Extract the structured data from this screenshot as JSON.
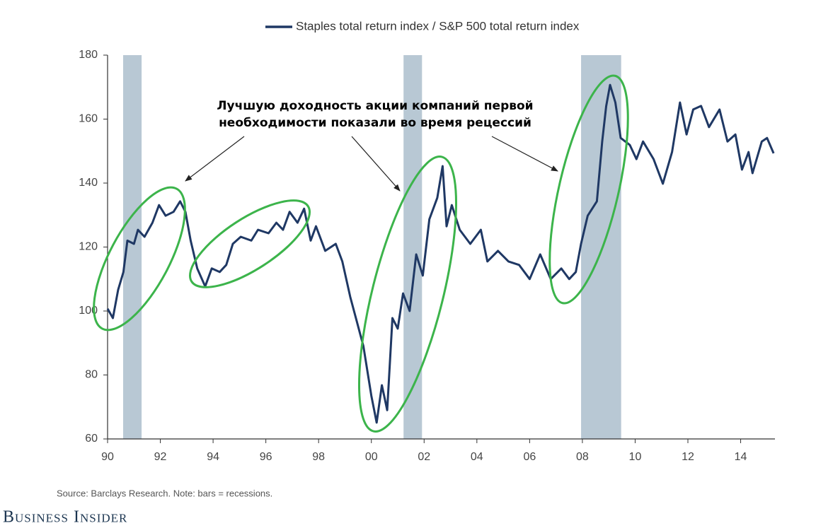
{
  "chart_data": {
    "type": "line",
    "x": [
      1990.0,
      1990.2,
      1990.4,
      1990.6,
      1990.75,
      1991.0,
      1991.15,
      1991.4,
      1991.7,
      1991.95,
      1992.2,
      1992.5,
      1992.75,
      1992.95,
      1993.15,
      1993.4,
      1993.7,
      1993.95,
      1994.25,
      1994.5,
      1994.75,
      1995.05,
      1995.45,
      1995.7,
      1996.1,
      1996.4,
      1996.65,
      1996.9,
      1997.2,
      1997.45,
      1997.7,
      1997.9,
      1998.25,
      1998.65,
      1998.9,
      1999.2,
      1999.45,
      1999.7,
      2000.0,
      2000.2,
      2000.4,
      2000.6,
      2000.8,
      2001.0,
      2001.2,
      2001.45,
      2001.7,
      2001.95,
      2002.2,
      2002.5,
      2002.7,
      2002.85,
      2003.05,
      2003.35,
      2003.75,
      2004.15,
      2004.4,
      2004.8,
      2005.2,
      2005.6,
      2006.0,
      2006.4,
      2006.8,
      2007.2,
      2007.5,
      2007.75,
      2007.95,
      2008.2,
      2008.55,
      2008.75,
      2008.9,
      2009.05,
      2009.25,
      2009.45,
      2009.8,
      2010.05,
      2010.3,
      2010.7,
      2011.05,
      2011.4,
      2011.7,
      2011.95,
      2012.2,
      2012.5,
      2012.8,
      2013.2,
      2013.5,
      2013.8,
      2014.05,
      2014.3,
      2014.45,
      2014.8,
      2015.0,
      2015.25
    ],
    "series": [
      {
        "name": "Staples total return index / S&P 500 total return index",
        "color": "#1f3864",
        "values": [
          100.7,
          97.8,
          106.6,
          112.2,
          122,
          121,
          125.4,
          123.2,
          127.6,
          133.1,
          129.8,
          131,
          134.3,
          131,
          122,
          113.3,
          107.7,
          113.3,
          112.2,
          114.4,
          121,
          123.2,
          122,
          125.4,
          124.3,
          127.6,
          125.4,
          131,
          127.6,
          132,
          122,
          126.5,
          118.8,
          121,
          115.5,
          104.4,
          96.7,
          89,
          73.5,
          65.1,
          76.8,
          69,
          97.8,
          94.5,
          105.5,
          100,
          117.7,
          111.1,
          128.7,
          135.4,
          145.3,
          126.5,
          133.1,
          125.4,
          121,
          125.4,
          115.5,
          118.8,
          115.5,
          114.4,
          110,
          117.7,
          110,
          113.3,
          110,
          112.2,
          121,
          129.8,
          134.3,
          153,
          164,
          170.7,
          165.2,
          154.1,
          151.9,
          147.5,
          153,
          147.5,
          139.8,
          149.7,
          165.2,
          155.2,
          163,
          164.1,
          157.5,
          163,
          153,
          155.2,
          144.2,
          149.7,
          143.1,
          153,
          154.1,
          149.3
        ]
      }
    ],
    "recessions": [
      {
        "start": 1990.59,
        "end": 1991.29
      },
      {
        "start": 2001.22,
        "end": 2001.92
      },
      {
        "start": 2007.95,
        "end": 2009.47
      }
    ],
    "recession_color": "#b8c8d4",
    "xlim": [
      1990,
      2015.3
    ],
    "xticks": [
      {
        "value": 1990,
        "label": "90"
      },
      {
        "value": 1992,
        "label": "92"
      },
      {
        "value": 1994,
        "label": "94"
      },
      {
        "value": 1996,
        "label": "96"
      },
      {
        "value": 1998,
        "label": "98"
      },
      {
        "value": 2000,
        "label": "00"
      },
      {
        "value": 2002,
        "label": "02"
      },
      {
        "value": 2004,
        "label": "04"
      },
      {
        "value": 2006,
        "label": "06"
      },
      {
        "value": 2008,
        "label": "08"
      },
      {
        "value": 2010,
        "label": "10"
      },
      {
        "value": 2012,
        "label": "12"
      },
      {
        "value": 2014,
        "label": "14"
      }
    ],
    "ylim": [
      60,
      180
    ],
    "yticks": [
      60,
      80,
      100,
      120,
      140,
      160,
      180
    ],
    "annotation": [
      "Лучшую доходность акции компаний первой",
      "необходимости показали во время рецессий"
    ],
    "source": "Source: Barclays Research. Note: bars = recessions.",
    "brand": "Business Insider"
  }
}
